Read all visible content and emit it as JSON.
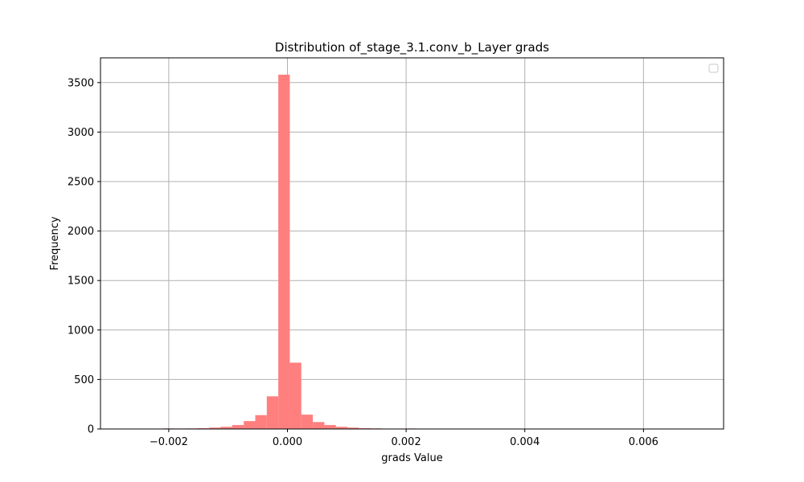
{
  "chart_data": {
    "type": "bar",
    "title": "Distribution of_stage_3.1.conv_b_Layer grads",
    "xlabel": "grads Value",
    "ylabel": "Frequency",
    "xlim": [
      -0.00315,
      0.00735
    ],
    "ylim": [
      0,
      3750
    ],
    "x_ticks": [
      -0.002,
      0.0,
      0.002,
      0.004,
      0.006
    ],
    "x_tick_labels": [
      "−0.002",
      "0.000",
      "0.002",
      "0.004",
      "0.006"
    ],
    "y_ticks": [
      0,
      500,
      1000,
      1500,
      2000,
      2500,
      3000,
      3500
    ],
    "y_tick_labels": [
      "0",
      "500",
      "1000",
      "1500",
      "2000",
      "2500",
      "3000",
      "3500"
    ],
    "grid": true,
    "legend": {
      "placement": "top-right",
      "entries": []
    },
    "bar_color": "#ff7f7f",
    "bin_width": 0.000194,
    "bins": [
      {
        "left": -0.002676,
        "count": 2
      },
      {
        "left": -0.002482,
        "count": 1
      },
      {
        "left": -0.002288,
        "count": 2
      },
      {
        "left": -0.002094,
        "count": 6
      },
      {
        "left": -0.0019,
        "count": 5
      },
      {
        "left": -0.001706,
        "count": 6
      },
      {
        "left": -0.001512,
        "count": 8
      },
      {
        "left": -0.001318,
        "count": 14
      },
      {
        "left": -0.001124,
        "count": 22
      },
      {
        "left": -0.00093,
        "count": 40
      },
      {
        "left": -0.000736,
        "count": 80
      },
      {
        "left": -0.000542,
        "count": 140
      },
      {
        "left": -0.000348,
        "count": 330
      },
      {
        "left": -0.000154,
        "count": 3580
      },
      {
        "left": 4e-05,
        "count": 670
      },
      {
        "left": 0.000234,
        "count": 145
      },
      {
        "left": 0.000428,
        "count": 70
      },
      {
        "left": 0.000622,
        "count": 40
      },
      {
        "left": 0.000816,
        "count": 22
      },
      {
        "left": 0.00101,
        "count": 14
      },
      {
        "left": 0.001204,
        "count": 8
      },
      {
        "left": 0.001398,
        "count": 6
      },
      {
        "left": 0.001592,
        "count": 4
      },
      {
        "left": 0.001786,
        "count": 2
      },
      {
        "left": 0.00198,
        "count": 5
      },
      {
        "left": 0.002174,
        "count": 1
      },
      {
        "left": 0.002368,
        "count": 1
      },
      {
        "left": 0.002562,
        "count": 1
      },
      {
        "left": 0.002756,
        "count": 1
      },
      {
        "left": 0.00295,
        "count": 1
      },
      {
        "left": 0.003144,
        "count": 1
      },
      {
        "left": 0.003338,
        "count": 1
      },
      {
        "left": 0.003532,
        "count": 1
      },
      {
        "left": 0.003726,
        "count": 1
      },
      {
        "left": 0.00392,
        "count": 1
      },
      {
        "left": 0.004114,
        "count": 1
      },
      {
        "left": 0.004308,
        "count": 1
      },
      {
        "left": 0.004502,
        "count": 1
      },
      {
        "left": 0.004696,
        "count": 1
      },
      {
        "left": 0.00489,
        "count": 1
      },
      {
        "left": 0.005084,
        "count": 1
      },
      {
        "left": 0.005278,
        "count": 1
      },
      {
        "left": 0.005472,
        "count": 1
      },
      {
        "left": 0.005666,
        "count": 1
      },
      {
        "left": 0.00586,
        "count": 1
      },
      {
        "left": 0.006054,
        "count": 1
      },
      {
        "left": 0.006248,
        "count": 1
      },
      {
        "left": 0.006442,
        "count": 1
      },
      {
        "left": 0.006636,
        "count": 1
      }
    ]
  }
}
